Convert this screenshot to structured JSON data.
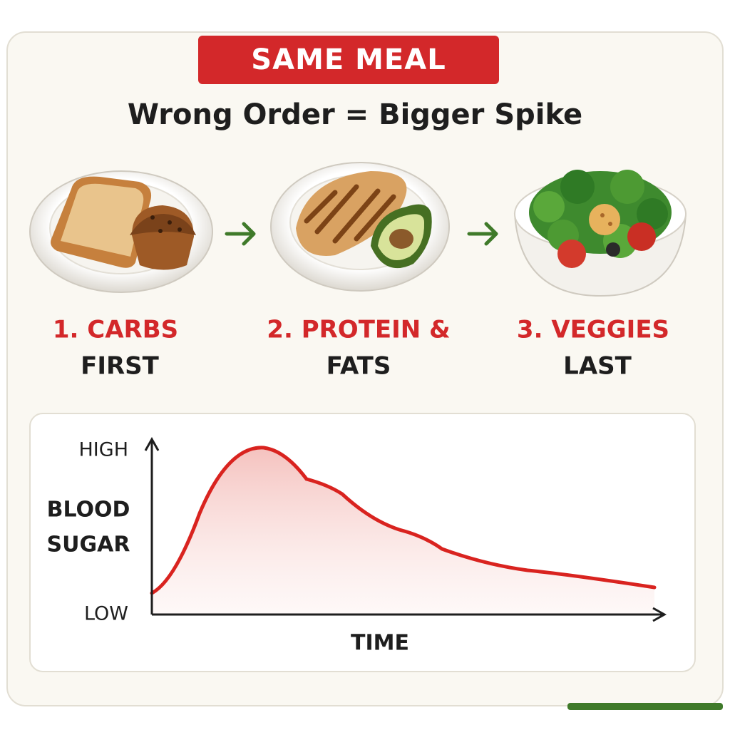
{
  "header": {
    "badge": "SAME MEAL",
    "title": "Wrong Order = Bigger Spike"
  },
  "steps": [
    {
      "label": "1. CARBS",
      "sub": "FIRST"
    },
    {
      "label": "2. PROTEIN &",
      "sub": "FATS"
    },
    {
      "label": "3. VEGGIES",
      "sub": "LAST"
    }
  ],
  "graph": {
    "high": "HIGH",
    "low": "LOW",
    "y_label": [
      "BLOOD",
      "SUGAR"
    ],
    "x_label": "TIME"
  }
}
